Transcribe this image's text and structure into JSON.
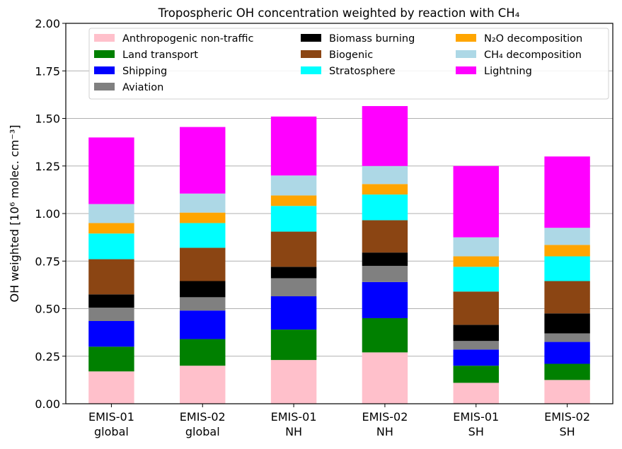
{
  "chart_data": {
    "type": "bar",
    "stacked": true,
    "title": "Tropospheric OH concentration weighted by reaction with CH₄",
    "xlabel": "",
    "ylabel": "OH weighted [10⁶ molec. cm⁻³]",
    "ylim": [
      0,
      2.0
    ],
    "yticks": [
      "0.00",
      "0.25",
      "0.50",
      "0.75",
      "1.00",
      "1.25",
      "1.50",
      "1.75",
      "2.00"
    ],
    "grid": "y",
    "legend_placement": "top",
    "categories": [
      [
        "EMIS-01",
        "global"
      ],
      [
        "EMIS-02",
        "global"
      ],
      [
        "EMIS-01",
        "NH"
      ],
      [
        "EMIS-02",
        "NH"
      ],
      [
        "EMIS-01",
        "SH"
      ],
      [
        "EMIS-02",
        "SH"
      ]
    ],
    "series": [
      {
        "name": "Anthropogenic non-traffic",
        "color": "#ffc0cb",
        "values": [
          0.17,
          0.2,
          0.23,
          0.27,
          0.11,
          0.125
        ]
      },
      {
        "name": "Land transport",
        "color": "#008000",
        "values": [
          0.13,
          0.14,
          0.16,
          0.18,
          0.09,
          0.085
        ]
      },
      {
        "name": "Shipping",
        "color": "#0000ff",
        "values": [
          0.135,
          0.15,
          0.175,
          0.19,
          0.085,
          0.115
        ]
      },
      {
        "name": "Aviation",
        "color": "#808080",
        "values": [
          0.07,
          0.07,
          0.095,
          0.085,
          0.045,
          0.045
        ]
      },
      {
        "name": "Biomass burning",
        "color": "#000000",
        "values": [
          0.07,
          0.085,
          0.06,
          0.07,
          0.085,
          0.105
        ]
      },
      {
        "name": "Biogenic",
        "color": "#8b4513",
        "values": [
          0.185,
          0.175,
          0.185,
          0.17,
          0.175,
          0.17
        ]
      },
      {
        "name": "Stratosphere",
        "color": "#00ffff",
        "values": [
          0.135,
          0.13,
          0.135,
          0.135,
          0.13,
          0.13
        ]
      },
      {
        "name": "N₂O decomposition",
        "color": "#ffa500",
        "values": [
          0.055,
          0.055,
          0.055,
          0.055,
          0.055,
          0.06
        ]
      },
      {
        "name": "CH₄ decomposition",
        "color": "#add8e6",
        "values": [
          0.1,
          0.1,
          0.105,
          0.095,
          0.1,
          0.09
        ]
      },
      {
        "name": "Lightning",
        "color": "#ff00ff",
        "values": [
          0.35,
          0.35,
          0.31,
          0.315,
          0.375,
          0.375
        ]
      }
    ]
  }
}
